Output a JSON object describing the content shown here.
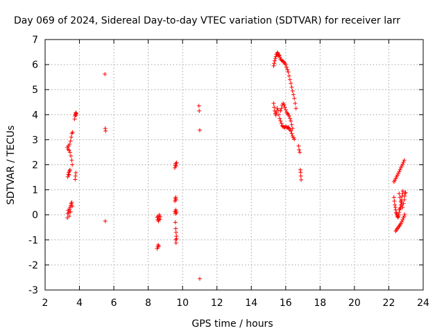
{
  "chart_data": {
    "type": "scatter",
    "title": "Day 069 of 2024, Sidereal Day-to-day VTEC variation (SDTVAR) for receiver larr",
    "xlabel": "GPS time / hours",
    "ylabel": "SDTVAR / TECUs",
    "xlim": [
      2,
      24
    ],
    "ylim": [
      -3,
      7
    ],
    "xticks": [
      2,
      4,
      6,
      8,
      10,
      12,
      14,
      16,
      18,
      20,
      22,
      24
    ],
    "yticks": [
      -3,
      -2,
      -1,
      0,
      1,
      2,
      3,
      4,
      5,
      6,
      7
    ],
    "grid": true,
    "marker": "+",
    "color": "#ff0000",
    "series": [
      {
        "name": "SDTVAR",
        "points": [
          [
            3.3,
            -0.12
          ],
          [
            3.32,
            0.05
          ],
          [
            3.34,
            0.18
          ],
          [
            3.38,
            0.1
          ],
          [
            3.4,
            -0.05
          ],
          [
            3.42,
            0.22
          ],
          [
            3.45,
            0.3
          ],
          [
            3.48,
            0.12
          ],
          [
            3.5,
            0.38
          ],
          [
            3.52,
            0.45
          ],
          [
            3.55,
            0.5
          ],
          [
            3.58,
            0.35
          ],
          [
            3.32,
            1.52
          ],
          [
            3.35,
            1.62
          ],
          [
            3.38,
            1.7
          ],
          [
            3.4,
            1.6
          ],
          [
            3.42,
            1.75
          ],
          [
            3.45,
            1.8
          ],
          [
            3.3,
            2.7
          ],
          [
            3.33,
            2.62
          ],
          [
            3.36,
            2.75
          ],
          [
            3.4,
            2.58
          ],
          [
            3.42,
            2.82
          ],
          [
            3.45,
            2.5
          ],
          [
            3.48,
            2.95
          ],
          [
            3.5,
            2.35
          ],
          [
            3.52,
            3.1
          ],
          [
            3.55,
            2.18
          ],
          [
            3.56,
            3.25
          ],
          [
            3.58,
            2.0
          ],
          [
            3.6,
            3.3
          ],
          [
            3.75,
            1.42
          ],
          [
            3.77,
            1.55
          ],
          [
            3.79,
            1.68
          ],
          [
            3.72,
            3.82
          ],
          [
            3.74,
            3.95
          ],
          [
            3.76,
            4.02
          ],
          [
            3.78,
            4.08
          ],
          [
            3.8,
            3.98
          ],
          [
            3.82,
            4.05
          ],
          [
            5.48,
            5.62
          ],
          [
            5.5,
            3.45
          ],
          [
            5.52,
            3.35
          ],
          [
            5.5,
            -0.25
          ],
          [
            8.52,
            -1.35
          ],
          [
            8.55,
            -1.28
          ],
          [
            8.58,
            -1.2
          ],
          [
            8.62,
            -1.25
          ],
          [
            8.52,
            -0.1
          ],
          [
            8.55,
            -0.2
          ],
          [
            8.58,
            -0.05
          ],
          [
            8.6,
            -0.25
          ],
          [
            8.62,
            -0.15
          ],
          [
            8.65,
            0.0
          ],
          [
            8.68,
            -0.18
          ],
          [
            8.7,
            -0.08
          ],
          [
            9.55,
            1.88
          ],
          [
            9.58,
            1.98
          ],
          [
            9.6,
            2.05
          ],
          [
            9.62,
            1.95
          ],
          [
            9.65,
            2.08
          ],
          [
            9.55,
            0.55
          ],
          [
            9.58,
            0.65
          ],
          [
            9.6,
            0.7
          ],
          [
            9.62,
            0.6
          ],
          [
            9.55,
            0.12
          ],
          [
            9.58,
            0.05
          ],
          [
            9.6,
            0.2
          ],
          [
            9.62,
            0.15
          ],
          [
            9.65,
            0.08
          ],
          [
            9.58,
            -0.3
          ],
          [
            9.6,
            -0.55
          ],
          [
            9.62,
            -0.7
          ],
          [
            9.64,
            -0.85
          ],
          [
            9.6,
            -1.0
          ],
          [
            9.62,
            -1.12
          ],
          [
            9.65,
            -0.95
          ],
          [
            10.95,
            4.35
          ],
          [
            10.97,
            4.15
          ],
          [
            11.0,
            3.38
          ],
          [
            11.0,
            -2.55
          ],
          [
            15.3,
            5.95
          ],
          [
            15.33,
            6.05
          ],
          [
            15.36,
            6.15
          ],
          [
            15.4,
            6.25
          ],
          [
            15.43,
            6.32
          ],
          [
            15.46,
            6.4
          ],
          [
            15.5,
            6.45
          ],
          [
            15.53,
            6.48
          ],
          [
            15.56,
            6.42
          ],
          [
            15.6,
            6.35
          ],
          [
            15.63,
            6.38
          ],
          [
            15.66,
            6.3
          ],
          [
            15.7,
            6.22
          ],
          [
            15.75,
            6.18
          ],
          [
            15.8,
            6.15
          ],
          [
            15.85,
            6.12
          ],
          [
            15.9,
            6.1
          ],
          [
            15.95,
            6.05
          ],
          [
            16.0,
            6.0
          ],
          [
            16.05,
            5.9
          ],
          [
            16.1,
            5.8
          ],
          [
            16.15,
            5.7
          ],
          [
            16.2,
            5.55
          ],
          [
            16.25,
            5.4
          ],
          [
            16.3,
            5.25
          ],
          [
            16.35,
            5.1
          ],
          [
            16.4,
            4.95
          ],
          [
            16.45,
            4.8
          ],
          [
            16.5,
            4.65
          ],
          [
            16.55,
            4.45
          ],
          [
            16.6,
            4.25
          ],
          [
            15.3,
            4.45
          ],
          [
            15.33,
            4.3
          ],
          [
            15.36,
            4.15
          ],
          [
            15.4,
            4.05
          ],
          [
            15.43,
            3.98
          ],
          [
            15.46,
            4.1
          ],
          [
            15.5,
            4.25
          ],
          [
            15.55,
            4.18
          ],
          [
            15.6,
            4.0
          ],
          [
            15.65,
            3.85
          ],
          [
            15.7,
            3.75
          ],
          [
            15.75,
            3.65
          ],
          [
            15.8,
            3.55
          ],
          [
            15.85,
            3.52
          ],
          [
            15.9,
            3.5
          ],
          [
            15.95,
            3.5
          ],
          [
            16.0,
            3.52
          ],
          [
            16.05,
            3.5
          ],
          [
            16.1,
            3.48
          ],
          [
            16.15,
            3.5
          ],
          [
            16.2,
            3.45
          ],
          [
            16.25,
            3.4
          ],
          [
            16.3,
            3.35
          ],
          [
            16.35,
            3.25
          ],
          [
            16.4,
            3.15
          ],
          [
            16.45,
            3.08
          ],
          [
            16.5,
            3.02
          ],
          [
            15.7,
            4.15
          ],
          [
            15.75,
            4.25
          ],
          [
            15.8,
            4.38
          ],
          [
            15.85,
            4.45
          ],
          [
            15.9,
            4.4
          ],
          [
            15.95,
            4.3
          ],
          [
            16.0,
            4.2
          ],
          [
            16.05,
            4.1
          ],
          [
            16.1,
            4.05
          ],
          [
            16.15,
            4.0
          ],
          [
            16.2,
            3.95
          ],
          [
            16.25,
            3.85
          ],
          [
            16.3,
            3.75
          ],
          [
            16.35,
            3.6
          ],
          [
            16.4,
            3.45
          ],
          [
            16.75,
            2.75
          ],
          [
            16.78,
            2.6
          ],
          [
            16.82,
            2.5
          ],
          [
            16.85,
            1.8
          ],
          [
            16.87,
            1.7
          ],
          [
            16.88,
            1.55
          ],
          [
            16.9,
            1.4
          ],
          [
            22.3,
            0.7
          ],
          [
            22.32,
            0.55
          ],
          [
            22.35,
            0.4
          ],
          [
            22.38,
            0.3
          ],
          [
            22.4,
            0.2
          ],
          [
            22.42,
            0.1
          ],
          [
            22.45,
            0.05
          ],
          [
            22.48,
            0.0
          ],
          [
            22.5,
            -0.05
          ],
          [
            22.52,
            -0.1
          ],
          [
            22.55,
            -0.08
          ],
          [
            22.58,
            0.0
          ],
          [
            22.6,
            0.1
          ],
          [
            22.62,
            0.2
          ],
          [
            22.65,
            0.25
          ],
          [
            22.68,
            0.3
          ],
          [
            22.7,
            0.4
          ],
          [
            22.72,
            0.5
          ],
          [
            22.75,
            0.6
          ],
          [
            22.78,
            0.75
          ],
          [
            22.8,
            0.85
          ],
          [
            22.82,
            0.95
          ],
          [
            22.3,
            1.32
          ],
          [
            22.35,
            1.38
          ],
          [
            22.4,
            1.45
          ],
          [
            22.45,
            1.52
          ],
          [
            22.5,
            1.58
          ],
          [
            22.55,
            1.65
          ],
          [
            22.6,
            1.72
          ],
          [
            22.65,
            1.8
          ],
          [
            22.7,
            1.88
          ],
          [
            22.75,
            1.95
          ],
          [
            22.8,
            2.02
          ],
          [
            22.85,
            2.1
          ],
          [
            22.9,
            2.18
          ],
          [
            22.4,
            -0.65
          ],
          [
            22.45,
            -0.6
          ],
          [
            22.5,
            -0.55
          ],
          [
            22.55,
            -0.5
          ],
          [
            22.6,
            -0.45
          ],
          [
            22.65,
            -0.4
          ],
          [
            22.7,
            -0.35
          ],
          [
            22.75,
            -0.28
          ],
          [
            22.8,
            -0.2
          ],
          [
            22.85,
            -0.12
          ],
          [
            22.9,
            -0.05
          ],
          [
            22.92,
            0.02
          ],
          [
            22.6,
            0.85
          ],
          [
            22.65,
            0.7
          ],
          [
            22.7,
            0.55
          ],
          [
            22.75,
            0.4
          ],
          [
            22.8,
            0.3
          ],
          [
            22.85,
            0.45
          ],
          [
            22.9,
            0.6
          ],
          [
            22.92,
            0.75
          ],
          [
            22.95,
            0.85
          ],
          [
            22.97,
            0.9
          ]
        ]
      }
    ]
  }
}
